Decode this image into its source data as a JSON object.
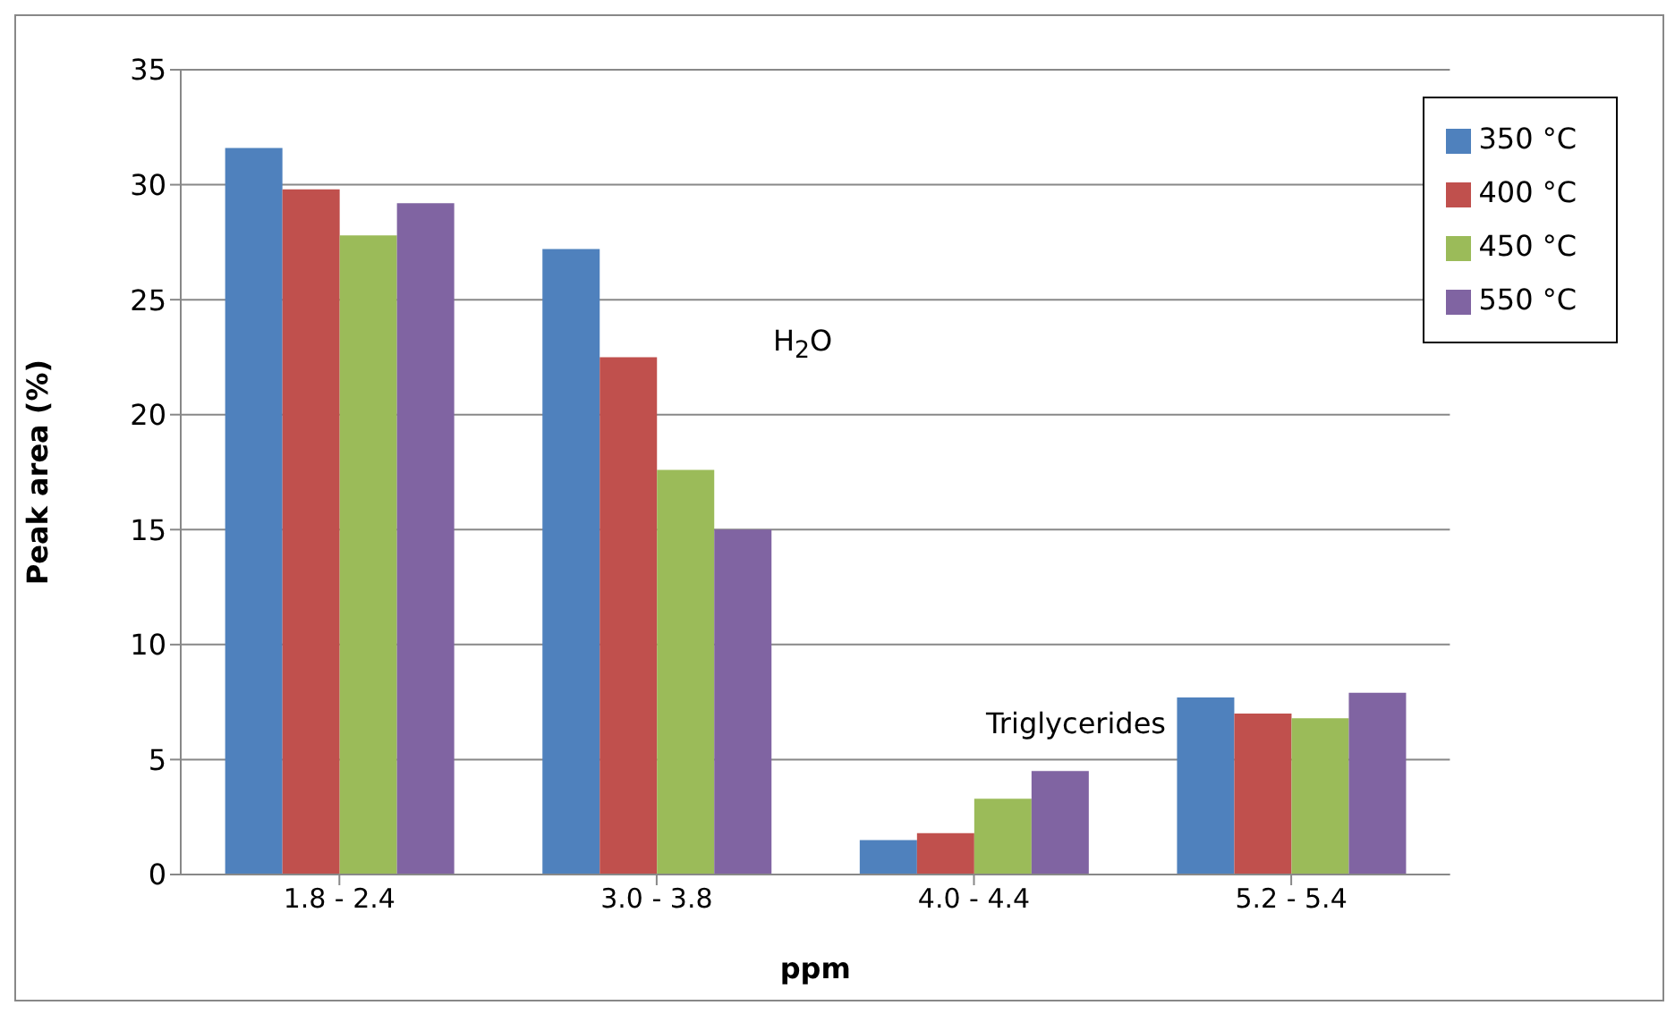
{
  "chart_data": {
    "type": "bar",
    "xlabel": "ppm",
    "ylabel": "Peak area (%)",
    "categories": [
      "1.8 - 2.4",
      "3.0 - 3.8",
      "4.0 - 4.4",
      "5.2 - 5.4"
    ],
    "series": [
      {
        "name": "350 °C",
        "color": "#4f81bd",
        "values": [
          31.6,
          27.2,
          1.5,
          7.7
        ]
      },
      {
        "name": "400 °C",
        "color": "#c0504d",
        "values": [
          29.8,
          22.5,
          1.8,
          7.0
        ]
      },
      {
        "name": "450 °C",
        "color": "#9bbb59",
        "values": [
          27.8,
          17.6,
          3.3,
          6.8
        ]
      },
      {
        "name": "550 °C",
        "color": "#8064a2",
        "values": [
          29.2,
          15.0,
          4.5,
          7.9
        ]
      }
    ],
    "ylim": [
      0,
      35
    ],
    "yticks": [
      0,
      5,
      10,
      15,
      20,
      25,
      30,
      35
    ],
    "grid": "y",
    "legend": "top right",
    "annotations": [
      "H$_{2}$O",
      "Triglycerides"
    ]
  }
}
